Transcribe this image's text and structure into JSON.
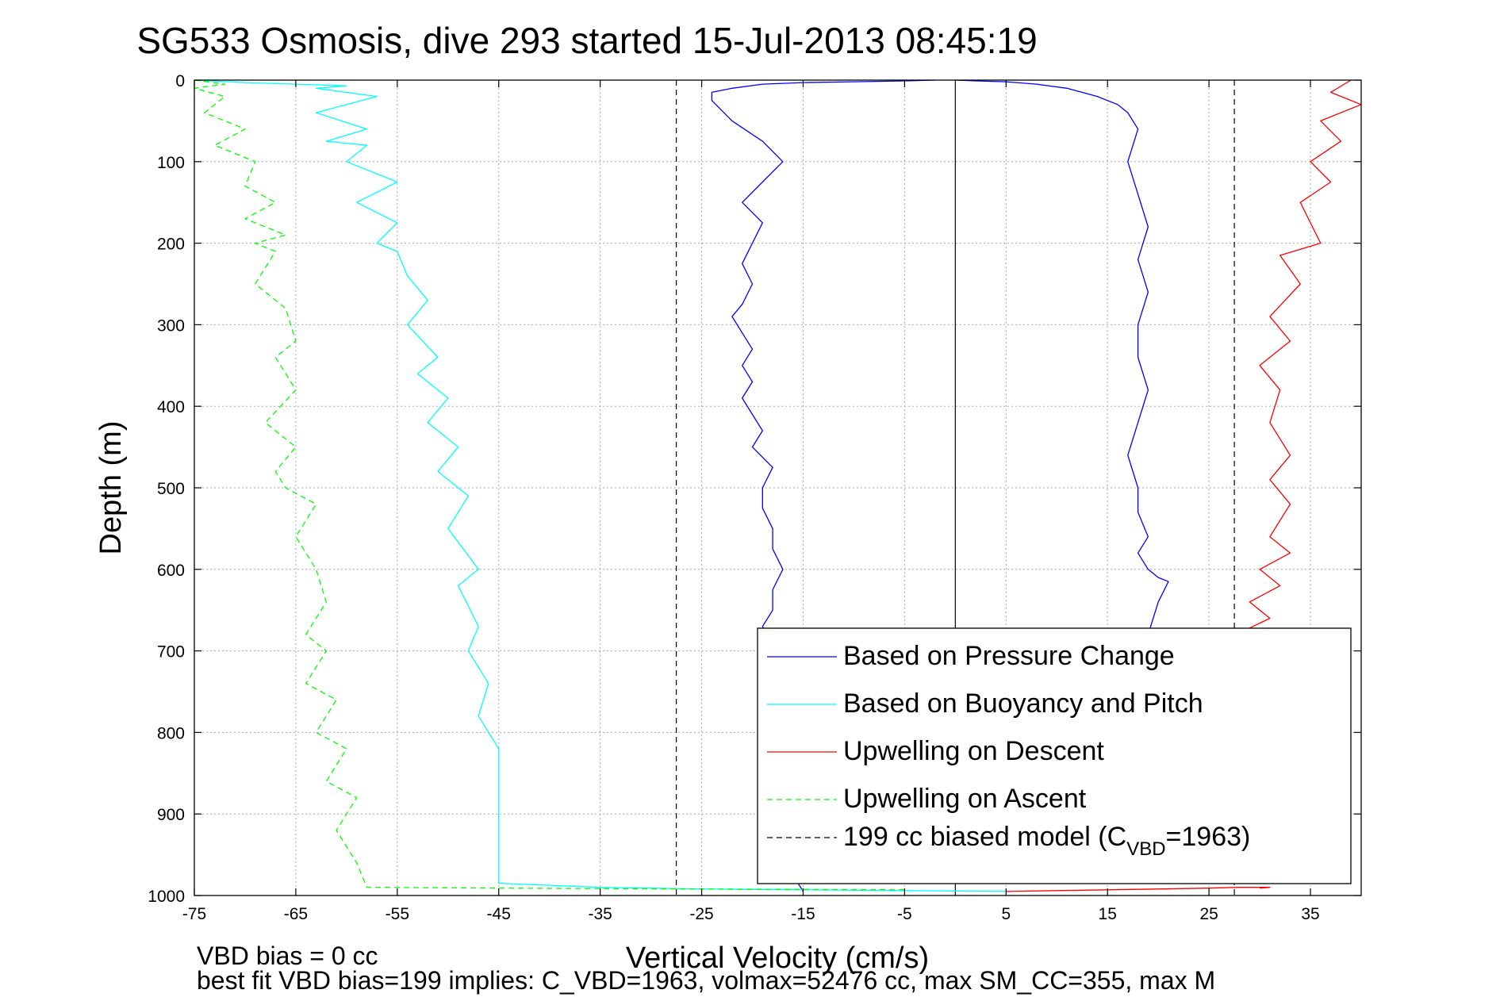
{
  "chart_data": {
    "type": "line",
    "title": "SG533 Osmosis, dive 293 started 15-Jul-2013 08:45:19",
    "xlabel": "Vertical Velocity (cm/s)",
    "ylabel": "Depth (m)",
    "xlim": [
      -75,
      40
    ],
    "ylim": [
      0,
      1000
    ],
    "y_reversed": true,
    "grid": true,
    "xticks": [
      -75,
      -65,
      -55,
      -45,
      -35,
      -25,
      -15,
      -5,
      5,
      15,
      25,
      35
    ],
    "yticks": [
      0,
      100,
      200,
      300,
      400,
      500,
      600,
      700,
      800,
      900,
      1000
    ],
    "legend_position": "bottom-right",
    "series": [
      {
        "name": "Based on Pressure Change",
        "color": "#0000ff",
        "style": "solid",
        "segments": [
          {
            "x": [
              -2,
              -5,
              -10,
              -15,
              -19,
              -22,
              -24,
              -24,
              -22,
              -19,
              -17,
              -19,
              -21,
              -19,
              -20,
              -21,
              -20,
              -21,
              -22,
              -21,
              -20,
              -21,
              -20,
              -21,
              -20,
              -19,
              -20,
              -18,
              -19,
              -19,
              -18,
              -18,
              -17,
              -18,
              -18,
              -19,
              -18,
              -18,
              -18,
              -17,
              -17,
              -17,
              -16,
              -17,
              -16,
              -16,
              -15
            ],
            "y": [
              0,
              1,
              2,
              3,
              5,
              10,
              15,
              25,
              50,
              75,
              100,
              125,
              150,
              175,
              200,
              225,
              250,
              275,
              290,
              310,
              330,
              350,
              370,
              390,
              410,
              430,
              450,
              475,
              500,
              525,
              550,
              575,
              600,
              625,
              650,
              670,
              690,
              710,
              740,
              770,
              800,
              830,
              860,
              900,
              940,
              975,
              995
            ]
          },
          {
            "x": [
              0,
              2,
              5,
              8,
              11,
              14,
              16,
              17,
              18,
              17,
              18,
              19,
              18,
              19,
              18,
              18,
              19,
              18,
              17,
              18,
              18,
              19,
              18,
              19,
              20,
              21,
              20,
              19,
              20,
              19,
              18,
              17,
              17,
              16,
              15
            ],
            "y": [
              0,
              1,
              2,
              5,
              10,
              20,
              30,
              40,
              60,
              100,
              140,
              180,
              220,
              260,
              300,
              340,
              380,
              420,
              460,
              500,
              530,
              560,
              580,
              600,
              610,
              615,
              640,
              680,
              720,
              760,
              800,
              850,
              900,
              960,
              985
            ]
          }
        ]
      },
      {
        "name": "Based on Buoyancy and Pitch",
        "color": "#00ffff",
        "style": "solid",
        "segments": [
          {
            "x": [
              -75,
              -70,
              -65,
              -60,
              -63,
              -57,
              -63,
              -58,
              -62,
              -58,
              -60,
              -55,
              -59,
              -55,
              -57,
              -55,
              -54,
              -52,
              -54,
              -51,
              -53,
              -50,
              -52,
              -49,
              -51,
              -48,
              -50,
              -47,
              -49,
              -47,
              -48,
              -46,
              -47,
              -45,
              -45,
              -35,
              -25,
              -15,
              -5,
              5
            ],
            "y": [
              0,
              3,
              5,
              7,
              10,
              20,
              40,
              60,
              75,
              80,
              100,
              125,
              150,
              175,
              200,
              210,
              240,
              270,
              300,
              340,
              360,
              390,
              420,
              450,
              480,
              510,
              550,
              600,
              620,
              670,
              700,
              740,
              780,
              820,
              985,
              990,
              992,
              993,
              994,
              995
            ]
          }
        ]
      },
      {
        "name": "Upwelling on Descent",
        "color": "#ff0000",
        "style": "solid",
        "segments": [
          {
            "x": [
              39,
              37,
              40,
              36,
              38,
              35,
              37,
              34,
              36,
              32,
              34,
              31,
              33,
              30,
              32,
              31,
              33,
              31,
              33,
              31,
              33,
              30,
              32,
              29,
              31,
              29,
              31,
              29,
              31
            ],
            "y": [
              0,
              15,
              30,
              50,
              75,
              100,
              125,
              150,
              200,
              215,
              250,
              290,
              320,
              350,
              380,
              420,
              460,
              490,
              520,
              560,
              580,
              600,
              620,
              640,
              660,
              672,
              680,
              685,
              690
            ]
          },
          {
            "x": [
              5,
              10,
              15,
              20,
              25,
              28,
              31,
              30
            ],
            "y": [
              995,
              994,
              993,
              992,
              991,
              990,
              990,
              991
            ]
          }
        ]
      },
      {
        "name": "Upwelling on Ascent",
        "color": "#00ff00",
        "style": "dashed",
        "segments": [
          {
            "x": [
              -75,
              -72,
              -75,
              -72,
              -74,
              -70,
              -73,
              -69,
              -70,
              -67,
              -70,
              -66,
              -69,
              -67,
              -69,
              -66,
              -65,
              -67,
              -65,
              -68,
              -65,
              -67,
              -66,
              -63,
              -65,
              -63,
              -62,
              -64,
              -62,
              -64,
              -61,
              -63,
              -60,
              -62,
              -59,
              -61,
              -59,
              -58,
              -45,
              -25,
              -5
            ],
            "y": [
              0,
              5,
              10,
              20,
              40,
              60,
              80,
              100,
              130,
              150,
              170,
              190,
              200,
              210,
              250,
              280,
              320,
              340,
              380,
              420,
              450,
              480,
              500,
              520,
              560,
              600,
              640,
              680,
              700,
              740,
              760,
              800,
              820,
              860,
              880,
              920,
              960,
              990,
              991,
              992,
              993
            ]
          }
        ]
      },
      {
        "name": "199 cc biased model (C",
        "name_sub": "VBD",
        "name_suffix": "=1963)",
        "color": "#000000",
        "style": "dashed",
        "vertical_lines_x": [
          -27.5,
          27.5
        ]
      }
    ],
    "zero_line_x": 0,
    "annotations": [
      "VBD bias = 0 cc",
      "best fit VBD bias=199 implies: C_VBD=1963, volmax=52476 cc, max SM_CC=355, max M"
    ]
  }
}
